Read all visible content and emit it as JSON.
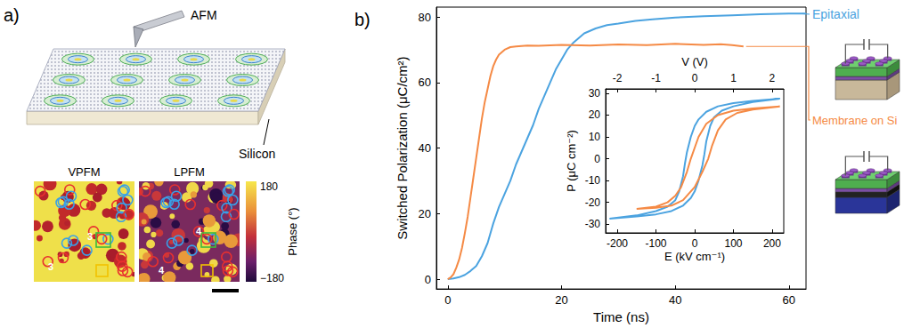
{
  "panel_labels": [
    "a)",
    "b)"
  ],
  "panel_a": {
    "tip_label": "AFM",
    "substrate_label": "Silicon",
    "images": [
      {
        "title": "VPFM",
        "labels": [
          "3",
          "3"
        ]
      },
      {
        "title": "LPFM",
        "labels": [
          "4",
          "4"
        ]
      }
    ],
    "colorbar": {
      "label": "Phase (°)",
      "range": [
        -180,
        180
      ],
      "ticks": [
        {
          "value": -180,
          "label": "−180"
        },
        180
      ]
    }
  },
  "chart_data": [
    {
      "type": "line",
      "xlabel": "Time (ns)",
      "ylabel": "Switched Polarization (μC/cm²)",
      "xlim": [
        -2,
        63
      ],
      "xticks": [
        0,
        20,
        40,
        60
      ],
      "ylim": [
        -3,
        83
      ],
      "yticks": [
        0,
        20,
        40,
        60,
        80
      ],
      "grid": false,
      "series": [
        {
          "name": "Epitaxial",
          "color": "#4ba3e0",
          "x": [
            0,
            1,
            2,
            3,
            4,
            5,
            6,
            7,
            8,
            9,
            10,
            11,
            12,
            13,
            14,
            15,
            16,
            17,
            18,
            19,
            20,
            21,
            22,
            23,
            24,
            26,
            28,
            30,
            33,
            36,
            40,
            45,
            50,
            55,
            60,
            63
          ],
          "values": [
            0,
            0.2,
            0.6,
            1.3,
            2.5,
            4,
            7,
            11,
            17,
            22,
            26,
            30,
            35,
            39,
            43,
            47,
            52,
            56,
            60,
            64,
            67,
            70,
            72,
            73.5,
            75,
            76.5,
            77.5,
            78,
            78.8,
            79.3,
            79.8,
            80.2,
            80.5,
            80.8,
            81,
            81
          ]
        },
        {
          "name": "Membrane on Si",
          "color": "#f58a45",
          "x": [
            0,
            0.5,
            1,
            1.5,
            2,
            2.5,
            3,
            3.5,
            4,
            4.5,
            5,
            5.5,
            6,
            6.5,
            7,
            7.5,
            8,
            8.5,
            9,
            10,
            11,
            12,
            14,
            16,
            20,
            25,
            30,
            35,
            40,
            45,
            48,
            50,
            52
          ],
          "values": [
            0,
            0.5,
            1.5,
            3.5,
            6,
            9.5,
            14,
            19,
            25,
            31,
            37,
            43,
            49,
            54,
            58,
            62,
            65,
            67,
            68.5,
            70,
            70.8,
            71,
            71.3,
            71.2,
            71.5,
            71.3,
            71.6,
            71.4,
            71.8,
            71.5,
            71.7,
            71.4,
            71
          ]
        }
      ]
    },
    {
      "type": "line",
      "xlabel": "E (kV cm⁻¹)",
      "x2label": "V (V)",
      "ylabel": "P (μC cm⁻²)",
      "xlim": [
        -230,
        230
      ],
      "xticks": [
        -200,
        -100,
        0,
        100,
        200
      ],
      "x2lim": [
        -2.3,
        2.3
      ],
      "x2ticks": [
        -2,
        -1,
        0,
        1,
        2
      ],
      "ylim": [
        -34,
        32
      ],
      "yticks": [
        -30,
        -20,
        -10,
        0,
        10,
        20,
        30
      ],
      "grid": false,
      "series": [
        {
          "name": "Epitaxial",
          "color": "#4ba3e0",
          "x": [
            -220,
            -150,
            -100,
            -60,
            -30,
            -10,
            0,
            10,
            20,
            25,
            30,
            40,
            50,
            70,
            100,
            150,
            220,
            150,
            100,
            60,
            30,
            10,
            0,
            -10,
            -20,
            -25,
            -30,
            -40,
            -50,
            -70,
            -100,
            -150,
            -220
          ],
          "values": [
            -27.5,
            -26.5,
            -25.5,
            -24,
            -21.5,
            -18,
            -15,
            -10,
            -3,
            2,
            8,
            15,
            19,
            22,
            24,
            26,
            27.5,
            26.5,
            25.5,
            24,
            21.5,
            18,
            15,
            10,
            3,
            -2,
            -8,
            -15,
            -19,
            -22,
            -24,
            -26,
            -27.5
          ]
        },
        {
          "name": "Membrane on Si",
          "color": "#f58a45",
          "x": [
            -150,
            -100,
            -60,
            -30,
            0,
            20,
            35,
            45,
            60,
            80,
            110,
            150,
            220,
            150,
            100,
            60,
            30,
            10,
            0,
            -10,
            -20,
            -35,
            -50,
            -70,
            -100,
            -150
          ],
          "values": [
            -23,
            -22.5,
            -21.5,
            -19,
            -13,
            -6,
            0,
            6,
            13,
            18,
            21,
            22.5,
            24,
            23,
            22,
            20,
            16,
            10,
            5,
            0,
            -6,
            -13,
            -17,
            -20,
            -22,
            -23
          ]
        }
      ]
    }
  ]
}
